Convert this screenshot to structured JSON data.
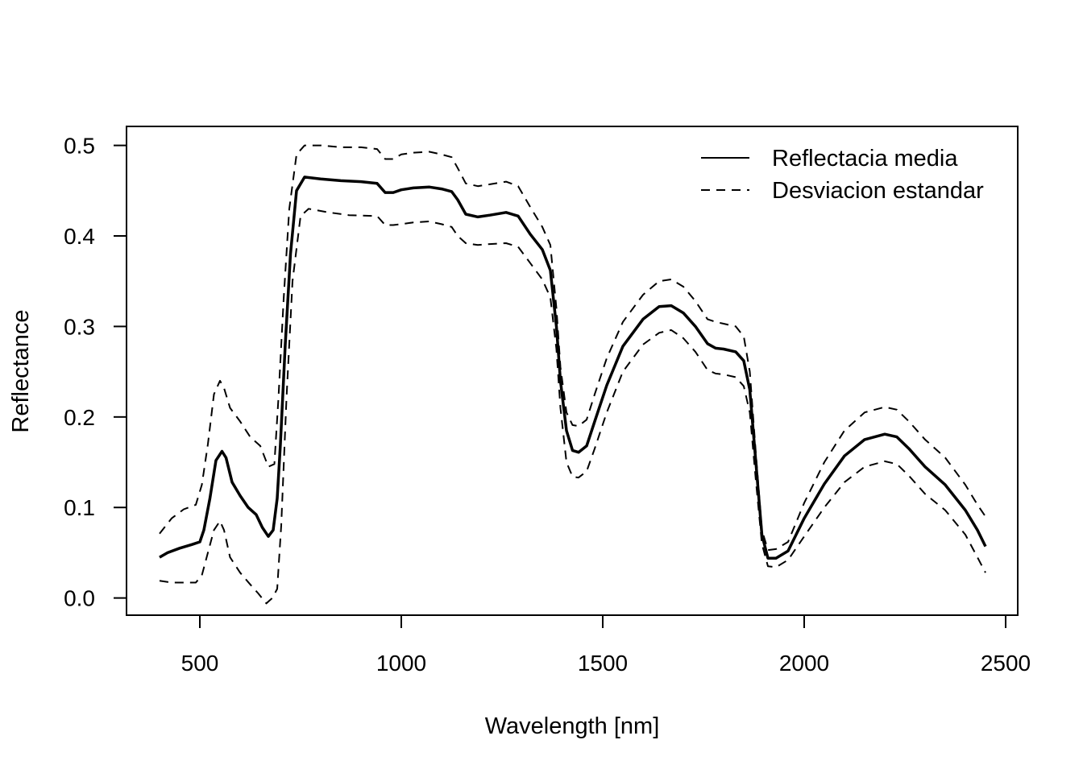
{
  "chart_data": {
    "type": "line",
    "title": "",
    "xlabel": "Wavelength [nm]",
    "ylabel": "Reflectance",
    "xlim": [
      318,
      2530
    ],
    "ylim": [
      -0.019,
      0.521
    ],
    "x_ticks": [
      500,
      1000,
      1500,
      2000,
      2500
    ],
    "y_ticks": [
      0.0,
      0.1,
      0.2,
      0.3,
      0.4,
      0.5
    ],
    "x_tick_labels": [
      "500",
      "1000",
      "1500",
      "2000",
      "2500"
    ],
    "y_tick_labels": [
      "0.0",
      "0.1",
      "0.2",
      "0.3",
      "0.4",
      "0.5"
    ],
    "grid": false,
    "legend_position": "top-right",
    "legend": [
      {
        "label": "Reflectacia media",
        "line_style": "solid"
      },
      {
        "label": "Desviacion estandar",
        "line_style": "dashed"
      }
    ],
    "series": [
      {
        "name": "Reflectacia media",
        "style": "solid",
        "points": [
          [
            400,
            0.045
          ],
          [
            420,
            0.05
          ],
          [
            450,
            0.055
          ],
          [
            480,
            0.059
          ],
          [
            500,
            0.062
          ],
          [
            510,
            0.075
          ],
          [
            525,
            0.11
          ],
          [
            540,
            0.152
          ],
          [
            555,
            0.162
          ],
          [
            565,
            0.155
          ],
          [
            580,
            0.128
          ],
          [
            600,
            0.113
          ],
          [
            620,
            0.1
          ],
          [
            640,
            0.092
          ],
          [
            655,
            0.078
          ],
          [
            670,
            0.068
          ],
          [
            682,
            0.075
          ],
          [
            692,
            0.11
          ],
          [
            700,
            0.17
          ],
          [
            712,
            0.28
          ],
          [
            725,
            0.38
          ],
          [
            740,
            0.45
          ],
          [
            760,
            0.465
          ],
          [
            800,
            0.463
          ],
          [
            850,
            0.461
          ],
          [
            900,
            0.46
          ],
          [
            940,
            0.458
          ],
          [
            960,
            0.448
          ],
          [
            980,
            0.448
          ],
          [
            1000,
            0.451
          ],
          [
            1030,
            0.453
          ],
          [
            1070,
            0.454
          ],
          [
            1100,
            0.452
          ],
          [
            1125,
            0.449
          ],
          [
            1140,
            0.44
          ],
          [
            1160,
            0.424
          ],
          [
            1190,
            0.421
          ],
          [
            1220,
            0.423
          ],
          [
            1260,
            0.426
          ],
          [
            1290,
            0.422
          ],
          [
            1320,
            0.402
          ],
          [
            1350,
            0.385
          ],
          [
            1370,
            0.362
          ],
          [
            1385,
            0.3
          ],
          [
            1395,
            0.24
          ],
          [
            1410,
            0.185
          ],
          [
            1425,
            0.163
          ],
          [
            1440,
            0.161
          ],
          [
            1460,
            0.168
          ],
          [
            1480,
            0.195
          ],
          [
            1510,
            0.235
          ],
          [
            1550,
            0.278
          ],
          [
            1600,
            0.308
          ],
          [
            1640,
            0.322
          ],
          [
            1670,
            0.323
          ],
          [
            1700,
            0.315
          ],
          [
            1730,
            0.3
          ],
          [
            1760,
            0.281
          ],
          [
            1780,
            0.276
          ],
          [
            1800,
            0.275
          ],
          [
            1830,
            0.272
          ],
          [
            1850,
            0.262
          ],
          [
            1865,
            0.23
          ],
          [
            1880,
            0.15
          ],
          [
            1895,
            0.07
          ],
          [
            1910,
            0.044
          ],
          [
            1930,
            0.044
          ],
          [
            1960,
            0.052
          ],
          [
            2000,
            0.088
          ],
          [
            2050,
            0.126
          ],
          [
            2100,
            0.157
          ],
          [
            2150,
            0.175
          ],
          [
            2200,
            0.181
          ],
          [
            2230,
            0.178
          ],
          [
            2260,
            0.165
          ],
          [
            2300,
            0.145
          ],
          [
            2350,
            0.125
          ],
          [
            2400,
            0.097
          ],
          [
            2430,
            0.075
          ],
          [
            2450,
            0.057
          ]
        ]
      },
      {
        "name": "Desviacion estandar",
        "style": "dashed",
        "points": [
          [
            400,
            0.071
          ],
          [
            430,
            0.088
          ],
          [
            460,
            0.098
          ],
          [
            490,
            0.103
          ],
          [
            505,
            0.125
          ],
          [
            520,
            0.17
          ],
          [
            535,
            0.225
          ],
          [
            550,
            0.24
          ],
          [
            560,
            0.232
          ],
          [
            575,
            0.21
          ],
          [
            600,
            0.195
          ],
          [
            625,
            0.178
          ],
          [
            650,
            0.168
          ],
          [
            670,
            0.145
          ],
          [
            685,
            0.148
          ],
          [
            695,
            0.22
          ],
          [
            708,
            0.33
          ],
          [
            722,
            0.43
          ],
          [
            740,
            0.49
          ],
          [
            760,
            0.5
          ],
          [
            800,
            0.5
          ],
          [
            850,
            0.498
          ],
          [
            900,
            0.498
          ],
          [
            940,
            0.496
          ],
          [
            960,
            0.485
          ],
          [
            980,
            0.485
          ],
          [
            1000,
            0.49
          ],
          [
            1030,
            0.492
          ],
          [
            1070,
            0.493
          ],
          [
            1100,
            0.49
          ],
          [
            1125,
            0.487
          ],
          [
            1140,
            0.475
          ],
          [
            1160,
            0.458
          ],
          [
            1190,
            0.455
          ],
          [
            1220,
            0.457
          ],
          [
            1260,
            0.46
          ],
          [
            1290,
            0.455
          ],
          [
            1320,
            0.432
          ],
          [
            1350,
            0.41
          ],
          [
            1370,
            0.39
          ],
          [
            1385,
            0.32
          ],
          [
            1395,
            0.255
          ],
          [
            1410,
            0.205
          ],
          [
            1425,
            0.191
          ],
          [
            1440,
            0.19
          ],
          [
            1460,
            0.197
          ],
          [
            1480,
            0.225
          ],
          [
            1510,
            0.265
          ],
          [
            1550,
            0.305
          ],
          [
            1600,
            0.335
          ],
          [
            1640,
            0.35
          ],
          [
            1670,
            0.352
          ],
          [
            1700,
            0.344
          ],
          [
            1730,
            0.328
          ],
          [
            1760,
            0.308
          ],
          [
            1780,
            0.305
          ],
          [
            1800,
            0.303
          ],
          [
            1830,
            0.3
          ],
          [
            1850,
            0.289
          ],
          [
            1865,
            0.25
          ],
          [
            1880,
            0.16
          ],
          [
            1895,
            0.075
          ],
          [
            1910,
            0.053
          ],
          [
            1930,
            0.054
          ],
          [
            1960,
            0.062
          ],
          [
            2000,
            0.105
          ],
          [
            2050,
            0.15
          ],
          [
            2100,
            0.185
          ],
          [
            2150,
            0.205
          ],
          [
            2200,
            0.211
          ],
          [
            2230,
            0.208
          ],
          [
            2260,
            0.195
          ],
          [
            2300,
            0.175
          ],
          [
            2350,
            0.155
          ],
          [
            2400,
            0.125
          ],
          [
            2430,
            0.103
          ],
          [
            2450,
            0.09
          ]
        ]
      },
      {
        "name": "Desviacion estandar",
        "style": "dashed",
        "points": [
          [
            400,
            0.019
          ],
          [
            430,
            0.017
          ],
          [
            460,
            0.017
          ],
          [
            490,
            0.017
          ],
          [
            505,
            0.025
          ],
          [
            520,
            0.05
          ],
          [
            535,
            0.075
          ],
          [
            550,
            0.085
          ],
          [
            560,
            0.075
          ],
          [
            575,
            0.045
          ],
          [
            600,
            0.028
          ],
          [
            625,
            0.015
          ],
          [
            645,
            0.005
          ],
          [
            665,
            -0.006
          ],
          [
            680,
            0.0
          ],
          [
            692,
            0.01
          ],
          [
            702,
            0.08
          ],
          [
            715,
            0.22
          ],
          [
            730,
            0.35
          ],
          [
            750,
            0.422
          ],
          [
            770,
            0.43
          ],
          [
            820,
            0.426
          ],
          [
            870,
            0.423
          ],
          [
            940,
            0.422
          ],
          [
            960,
            0.412
          ],
          [
            980,
            0.412
          ],
          [
            1000,
            0.413
          ],
          [
            1030,
            0.415
          ],
          [
            1070,
            0.416
          ],
          [
            1100,
            0.413
          ],
          [
            1125,
            0.41
          ],
          [
            1140,
            0.4
          ],
          [
            1160,
            0.392
          ],
          [
            1190,
            0.39
          ],
          [
            1220,
            0.391
          ],
          [
            1260,
            0.392
          ],
          [
            1290,
            0.388
          ],
          [
            1320,
            0.37
          ],
          [
            1350,
            0.352
          ],
          [
            1370,
            0.332
          ],
          [
            1385,
            0.275
          ],
          [
            1395,
            0.21
          ],
          [
            1410,
            0.15
          ],
          [
            1425,
            0.134
          ],
          [
            1440,
            0.133
          ],
          [
            1460,
            0.14
          ],
          [
            1480,
            0.165
          ],
          [
            1510,
            0.205
          ],
          [
            1550,
            0.25
          ],
          [
            1600,
            0.28
          ],
          [
            1640,
            0.293
          ],
          [
            1670,
            0.296
          ],
          [
            1700,
            0.287
          ],
          [
            1730,
            0.272
          ],
          [
            1760,
            0.252
          ],
          [
            1780,
            0.248
          ],
          [
            1800,
            0.247
          ],
          [
            1830,
            0.244
          ],
          [
            1850,
            0.234
          ],
          [
            1865,
            0.205
          ],
          [
            1880,
            0.13
          ],
          [
            1895,
            0.06
          ],
          [
            1910,
            0.035
          ],
          [
            1930,
            0.034
          ],
          [
            1960,
            0.042
          ],
          [
            2000,
            0.068
          ],
          [
            2050,
            0.1
          ],
          [
            2100,
            0.128
          ],
          [
            2150,
            0.145
          ],
          [
            2200,
            0.151
          ],
          [
            2230,
            0.148
          ],
          [
            2260,
            0.135
          ],
          [
            2300,
            0.115
          ],
          [
            2350,
            0.097
          ],
          [
            2400,
            0.07
          ],
          [
            2430,
            0.045
          ],
          [
            2450,
            0.028
          ]
        ]
      }
    ]
  }
}
